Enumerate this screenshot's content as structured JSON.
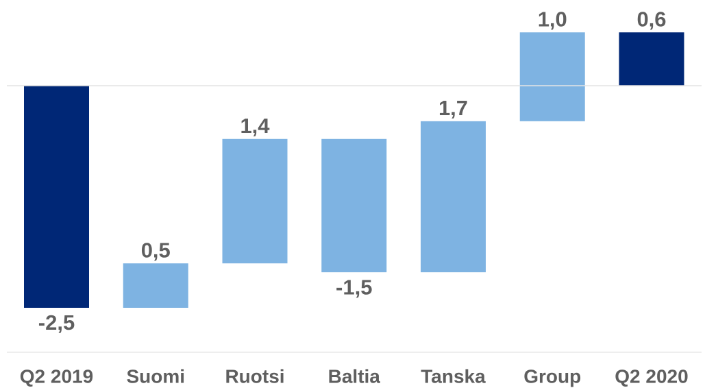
{
  "chart_data": {
    "type": "waterfall",
    "categories": [
      "Q2 2019",
      "Suomi",
      "Ruotsi",
      "Baltia",
      "Tanska",
      "Group",
      "Q2 2020"
    ],
    "values": [
      -2.5,
      0.5,
      1.4,
      -1.5,
      1.7,
      1.0,
      0.6
    ],
    "value_labels": [
      "-2,5",
      "0,5",
      "1,4",
      "-1,5",
      "1,7",
      "1,0",
      "0,6"
    ],
    "colors": [
      "#002776",
      "#7eb3e2",
      "#7eb3e2",
      "#7eb3e2",
      "#7eb3e2",
      "#7eb3e2",
      "#002776"
    ],
    "ylim": [
      -3,
      0.8
    ]
  }
}
